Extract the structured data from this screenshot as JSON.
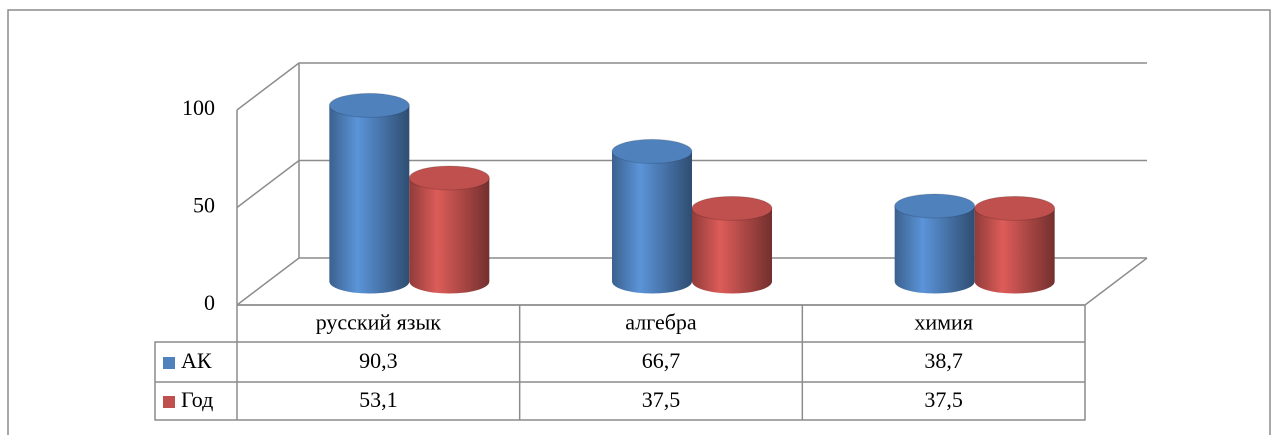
{
  "chart_data": {
    "type": "bar3d",
    "categories": [
      "русский язык",
      "алгебра",
      "химия"
    ],
    "series": [
      {
        "name": "АК",
        "color": "#4f81bd",
        "values": [
          90.3,
          66.7,
          38.7
        ],
        "value_labels": [
          "90,3",
          "66,7",
          "38,7"
        ]
      },
      {
        "name": "Год",
        "color": "#c0504d",
        "values": [
          53.1,
          37.5,
          37.5
        ],
        "value_labels": [
          "53,1",
          "37,5",
          "37,5"
        ]
      }
    ],
    "ylim": [
      0,
      100
    ],
    "yticks": [
      0,
      50,
      100
    ],
    "grid": true
  }
}
